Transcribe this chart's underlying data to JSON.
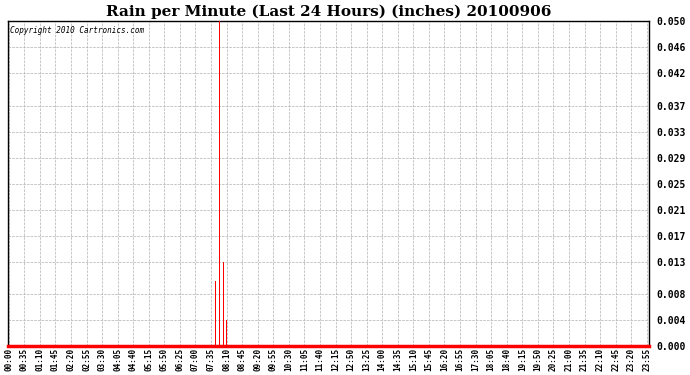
{
  "title": "Rain per Minute (Last 24 Hours) (inches) 20100906",
  "copyright": "Copyright 2010 Cartronics.com",
  "bar_color": "#ff0000",
  "background_color": "#ffffff",
  "plot_bg_color": "#ffffff",
  "grid_color": "#b0b0b0",
  "axis_line_color": "#ff0000",
  "ylim": [
    0.0,
    0.05
  ],
  "yticks": [
    0.0,
    0.004,
    0.008,
    0.013,
    0.017,
    0.021,
    0.025,
    0.029,
    0.033,
    0.037,
    0.042,
    0.046,
    0.05
  ],
  "total_minutes": 1440,
  "xtick_interval": 35,
  "spikes": [
    {
      "minute": 455,
      "value": 0.01
    },
    {
      "minute": 465,
      "value": 0.01
    },
    {
      "minute": 474,
      "value": 0.05
    },
    {
      "minute": 477,
      "value": 0.013
    },
    {
      "minute": 480,
      "value": 0.013
    },
    {
      "minute": 483,
      "value": 0.013
    },
    {
      "minute": 490,
      "value": 0.004
    }
  ],
  "xtick_labels": [
    "00:00",
    "00:35",
    "01:10",
    "01:45",
    "02:20",
    "02:55",
    "03:30",
    "04:05",
    "04:40",
    "05:15",
    "05:50",
    "06:25",
    "07:00",
    "07:35",
    "08:10",
    "08:45",
    "09:20",
    "09:55",
    "10:30",
    "11:05",
    "11:40",
    "12:15",
    "12:50",
    "13:25",
    "14:00",
    "14:35",
    "15:10",
    "15:45",
    "16:20",
    "16:55",
    "17:30",
    "18:05",
    "18:40",
    "19:15",
    "19:50",
    "20:25",
    "21:00",
    "21:35",
    "22:10",
    "22:45",
    "23:20",
    "23:55"
  ],
  "title_fontsize": 11,
  "ytick_fontsize": 7,
  "xtick_fontsize": 5.5
}
